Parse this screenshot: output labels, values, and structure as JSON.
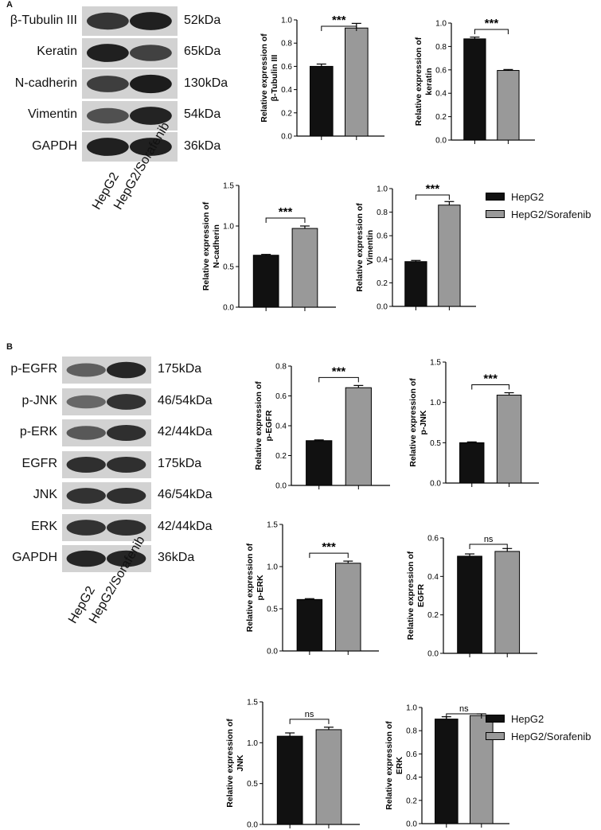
{
  "panels": [
    {
      "letter": "A",
      "blot": {
        "lanes": [
          "HepG2",
          "HepG2/Sorafenib"
        ],
        "rows": [
          {
            "protein": "β-Tubulin III",
            "size": "52kDa",
            "intensity": [
              0.78,
              0.92
            ]
          },
          {
            "protein": "Keratin",
            "size": "65kDa",
            "intensity": [
              0.92,
              0.7
            ]
          },
          {
            "protein": "N-cadherin",
            "size": "130kDa",
            "intensity": [
              0.72,
              0.95
            ]
          },
          {
            "protein": "Vimentin",
            "size": "54kDa",
            "intensity": [
              0.6,
              0.9
            ]
          },
          {
            "protein": "GAPDH",
            "size": "36kDa",
            "intensity": [
              0.92,
              0.92
            ]
          }
        ]
      },
      "legend": {
        "items": [
          "HepG2",
          "HepG2/Sorafenib"
        ]
      }
    },
    {
      "letter": "B",
      "blot": {
        "lanes": [
          "HepG2",
          "HepG2/Sorafenib"
        ],
        "rows": [
          {
            "protein": "p-EGFR",
            "size": "175kDa",
            "intensity": [
              0.5,
              0.88
            ]
          },
          {
            "protein": "p-JNK",
            "size": "46/54kDa",
            "intensity": [
              0.45,
              0.8
            ]
          },
          {
            "protein": "p-ERK",
            "size": "42/44kDa",
            "intensity": [
              0.55,
              0.82
            ]
          },
          {
            "protein": "EGFR",
            "size": "175kDa",
            "intensity": [
              0.82,
              0.82
            ]
          },
          {
            "protein": "JNK",
            "size": "46/54kDa",
            "intensity": [
              0.8,
              0.82
            ]
          },
          {
            "protein": "ERK",
            "size": "42/44kDa",
            "intensity": [
              0.8,
              0.82
            ]
          },
          {
            "protein": "GAPDH",
            "size": "36kDa",
            "intensity": [
              0.88,
              0.88
            ]
          }
        ]
      },
      "legend": {
        "items": [
          "HepG2",
          "HepG2/Sorafenib"
        ]
      }
    }
  ],
  "series_colors": {
    "HepG2": "#111111",
    "HepG2/Sorafenib": "#999999"
  },
  "chart_data": [
    {
      "type": "bar",
      "panel": "A",
      "categories": [
        "HepG2",
        "HepG2/Sorafenib"
      ],
      "values": [
        0.6,
        0.93
      ],
      "errors": [
        0.02,
        0.04
      ],
      "ylabel_lines": [
        "Relative expression of",
        "β-Tubulin III"
      ],
      "ylim": [
        0,
        1.0
      ],
      "yticks": [
        "0.0",
        "0.2",
        "0.4",
        "0.6",
        "0.8",
        "1.0"
      ],
      "significance": "***"
    },
    {
      "type": "bar",
      "panel": "A",
      "categories": [
        "HepG2",
        "HepG2/Sorafenib"
      ],
      "values": [
        0.865,
        0.595
      ],
      "errors": [
        0.015,
        0.008
      ],
      "ylabel_lines": [
        "Relative expression of",
        "keratin"
      ],
      "ylim": [
        0,
        1.0
      ],
      "yticks": [
        "0.0",
        "0.2",
        "0.4",
        "0.6",
        "0.8",
        "1.0"
      ],
      "significance": "***"
    },
    {
      "type": "bar",
      "panel": "A",
      "categories": [
        "HepG2",
        "HepG2/Sorafenib"
      ],
      "values": [
        0.64,
        0.97
      ],
      "errors": [
        0.01,
        0.03
      ],
      "ylabel_lines": [
        "Relative expression of",
        "N-cadherin"
      ],
      "ylim": [
        0,
        1.5
      ],
      "yticks": [
        "0.0",
        "0.5",
        "1.0",
        "1.5"
      ],
      "significance": "***"
    },
    {
      "type": "bar",
      "panel": "A",
      "categories": [
        "HepG2",
        "HepG2/Sorafenib"
      ],
      "values": [
        0.38,
        0.86
      ],
      "errors": [
        0.01,
        0.03
      ],
      "ylabel_lines": [
        "Relative expression of",
        "Vimentin"
      ],
      "ylim": [
        0,
        1.0
      ],
      "yticks": [
        "0.0",
        "0.2",
        "0.4",
        "0.6",
        "0.8",
        "1.0"
      ],
      "significance": "***"
    },
    {
      "type": "bar",
      "panel": "B",
      "categories": [
        "HepG2",
        "HepG2/Sorafenib"
      ],
      "values": [
        0.3,
        0.655
      ],
      "errors": [
        0.005,
        0.015
      ],
      "ylabel_lines": [
        "Relative expression of",
        "p-EGFR"
      ],
      "ylim": [
        0,
        0.8
      ],
      "yticks": [
        "0.0",
        "0.2",
        "0.4",
        "0.6",
        "0.8"
      ],
      "significance": "***"
    },
    {
      "type": "bar",
      "panel": "B",
      "categories": [
        "HepG2",
        "HepG2/Sorafenib"
      ],
      "values": [
        0.5,
        1.09
      ],
      "errors": [
        0.01,
        0.03
      ],
      "ylabel_lines": [
        "Relative expression of",
        "p-JNK"
      ],
      "ylim": [
        0,
        1.5
      ],
      "yticks": [
        "0.0",
        "0.5",
        "1.0",
        "1.5"
      ],
      "significance": "***"
    },
    {
      "type": "bar",
      "panel": "B",
      "categories": [
        "HepG2",
        "HepG2/Sorafenib"
      ],
      "values": [
        0.61,
        1.04
      ],
      "errors": [
        0.01,
        0.025
      ],
      "ylabel_lines": [
        "Relative expression of",
        "p-ERK"
      ],
      "ylim": [
        0,
        1.5
      ],
      "yticks": [
        "0.0",
        "0.5",
        "1.0",
        "1.5"
      ],
      "significance": "***"
    },
    {
      "type": "bar",
      "panel": "B",
      "categories": [
        "HepG2",
        "HepG2/Sorafenib"
      ],
      "values": [
        0.505,
        0.53
      ],
      "errors": [
        0.012,
        0.015
      ],
      "ylabel_lines": [
        "Relative expression of",
        "EGFR"
      ],
      "ylim": [
        0,
        0.6
      ],
      "yticks": [
        "0.0",
        "0.2",
        "0.4",
        "0.6"
      ],
      "significance": "ns"
    },
    {
      "type": "bar",
      "panel": "B",
      "categories": [
        "HepG2",
        "HepG2/Sorafenib"
      ],
      "values": [
        1.08,
        1.16
      ],
      "errors": [
        0.04,
        0.03
      ],
      "ylabel_lines": [
        "Relative expression of",
        "JNK"
      ],
      "ylim": [
        0,
        1.5
      ],
      "yticks": [
        "0.0",
        "0.5",
        "1.0",
        "1.5"
      ],
      "significance": "ns"
    },
    {
      "type": "bar",
      "panel": "B",
      "categories": [
        "HepG2",
        "HepG2/Sorafenib"
      ],
      "values": [
        0.9,
        0.93
      ],
      "errors": [
        0.02,
        0.015
      ],
      "ylabel_lines": [
        "Relative expression of",
        "ERK"
      ],
      "ylim": [
        0,
        1.0
      ],
      "yticks": [
        "0.0",
        "0.2",
        "0.4",
        "0.6",
        "0.8",
        "1.0"
      ],
      "significance": "ns"
    }
  ]
}
